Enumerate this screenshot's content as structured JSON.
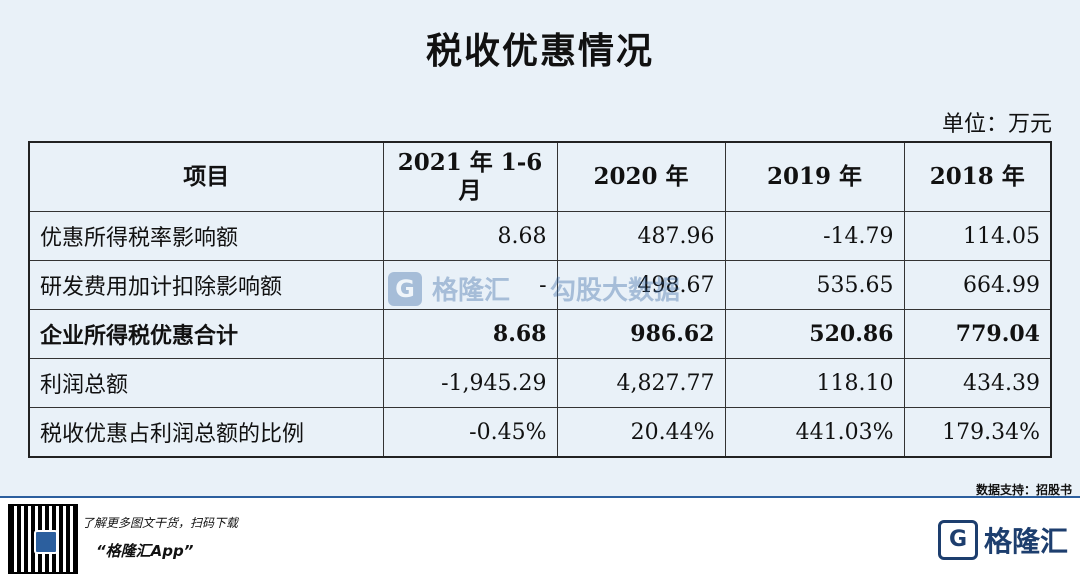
{
  "title": "税收优惠情况",
  "unit": "单位：万元",
  "table": {
    "headers": [
      "项目",
      "2021 年 1-6 月",
      "2020 年",
      "2019 年",
      "2018 年"
    ],
    "rows": [
      {
        "label": "优惠所得税率影响额",
        "values": [
          "8.68",
          "487.96",
          "-14.79",
          "114.05"
        ]
      },
      {
        "label": "研发费用加计扣除影响额",
        "values": [
          "-",
          "498.67",
          "535.65",
          "664.99"
        ]
      },
      {
        "label": "企业所得税优惠合计",
        "values": [
          "8.68",
          "986.62",
          "520.86",
          "779.04"
        ]
      },
      {
        "label": "利润总额",
        "values": [
          "-1,945.29",
          "4,827.77",
          "118.10",
          "434.39"
        ]
      },
      {
        "label": "税收优惠占利润总额的比例",
        "values": [
          "-0.45%",
          "20.44%",
          "441.03%",
          "179.34%"
        ]
      }
    ]
  },
  "watermark": {
    "logo_letter": "G",
    "text1": "格隆汇",
    "text2": "勾股大数据"
  },
  "source_note": "数据支持：招股书",
  "footer": {
    "promo": "了解更多图文干货，扫码下载",
    "app_name": "“格隆汇App”",
    "brand_logo_letter": "G",
    "brand_name": "格隆汇"
  },
  "colors": {
    "background": "#e9f1f8",
    "brand": "#2c5f9e"
  }
}
